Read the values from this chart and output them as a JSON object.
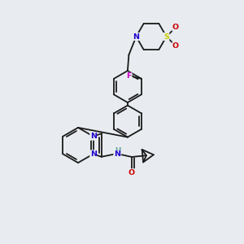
{
  "bg_color": "#e8ecf0",
  "bond_color": "#1a1a1a",
  "lw": 1.3,
  "atom_colors": {
    "N": "#2200cc",
    "O": "#cc0000",
    "F": "#cc00cc",
    "S": "#cccc00",
    "H": "#559999",
    "C": "#1a1a1a"
  },
  "fs": 6.8,
  "xlim": [
    0,
    10
  ],
  "ylim": [
    0,
    10
  ]
}
